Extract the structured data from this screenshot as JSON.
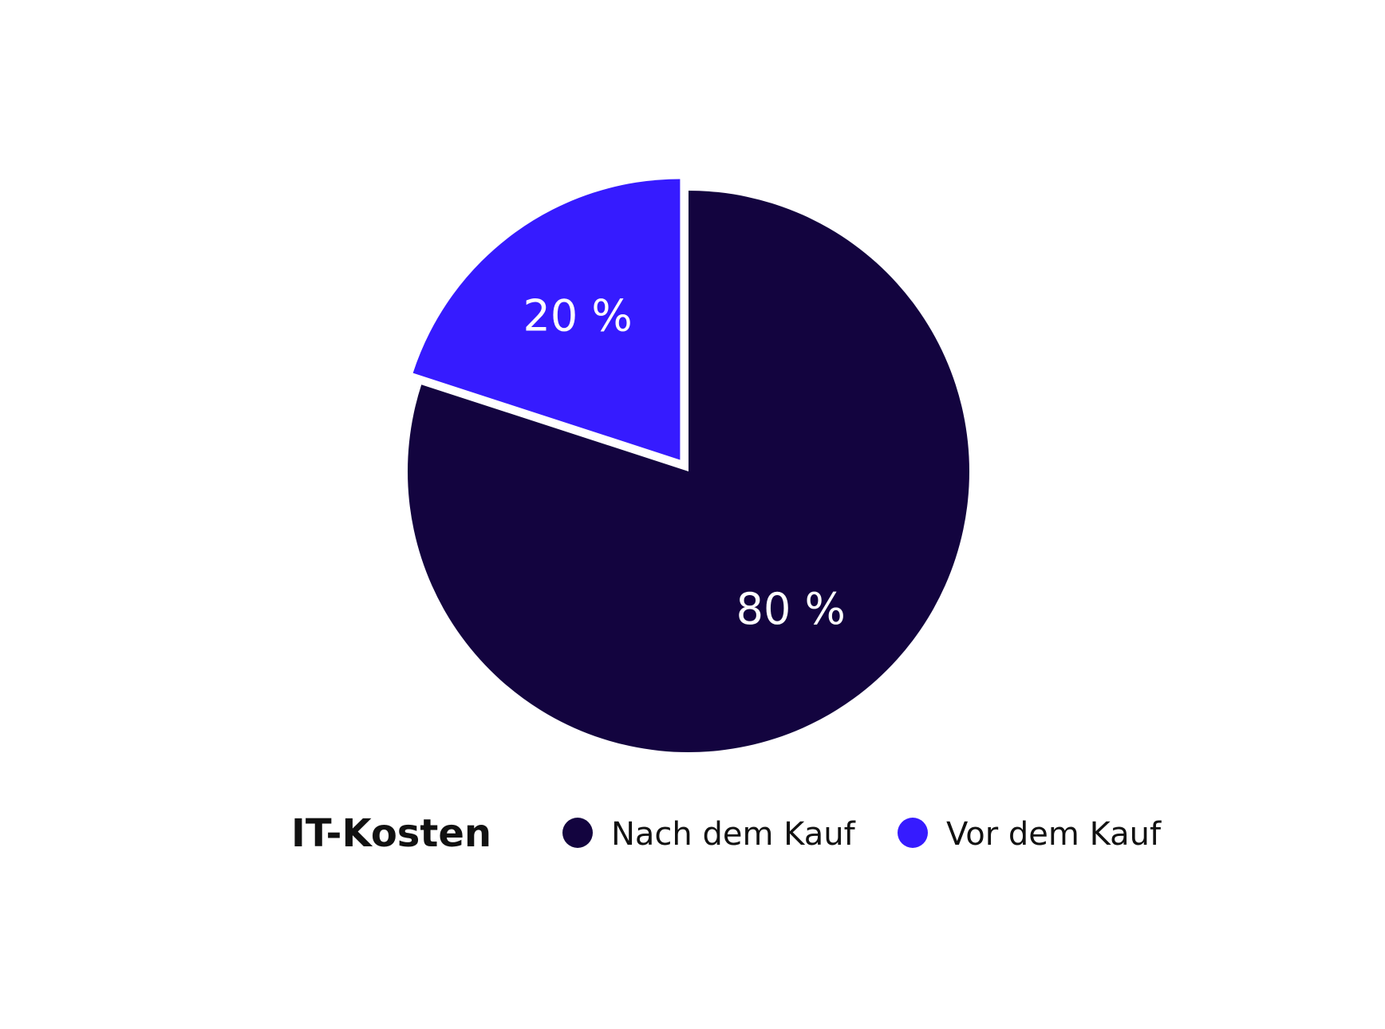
{
  "chart_data": {
    "type": "pie",
    "title": "IT-Kosten",
    "series": [
      {
        "name": "Nach dem Kauf",
        "value": 80,
        "label": "80 %",
        "color": "#13043f",
        "exploded": false
      },
      {
        "name": "Vor dem Kauf",
        "value": 20,
        "label": "20 %",
        "color": "#361bff",
        "exploded": true
      }
    ],
    "start_angle_deg": -90,
    "direction": "clockwise",
    "legend_position": "bottom"
  }
}
